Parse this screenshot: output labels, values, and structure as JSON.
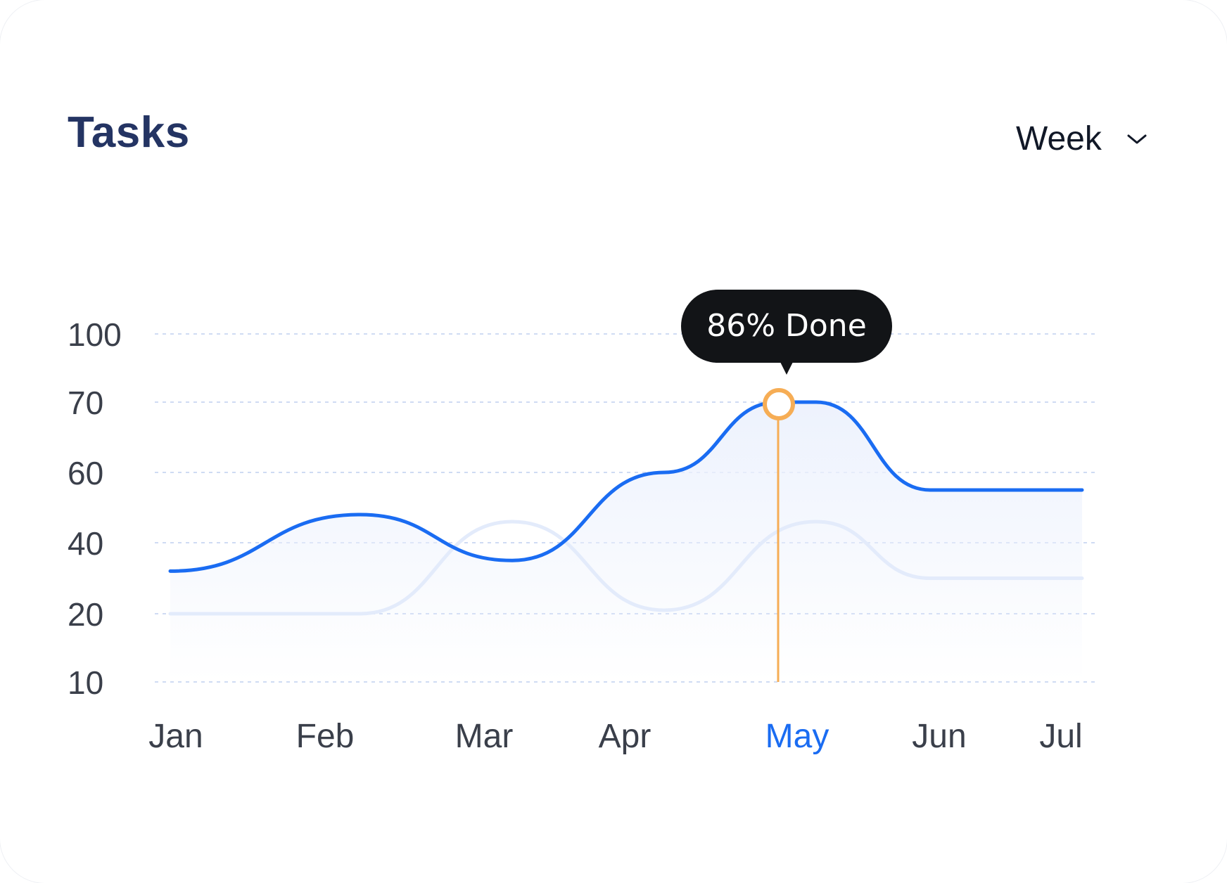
{
  "header": {
    "title": "Tasks",
    "period_selector": {
      "selected": "Week",
      "icon": "chevron-down-icon"
    }
  },
  "tooltip": {
    "label": "86% Done"
  },
  "colors": {
    "title": "#243463",
    "primary_series": "#1a6cf2",
    "secondary_series": "#e3ebfb",
    "area_fill": "#edf2fd",
    "grid": "#cfdbf3",
    "highlight": "#f6ad55",
    "tooltip_bg": "#121417",
    "axis_label": "#3a3f4a",
    "active_label": "#1a6cf2"
  },
  "chart_data": {
    "type": "area",
    "categories": [
      "Jan",
      "Feb",
      "Mar",
      "Apr",
      "May",
      "Jun",
      "Jul"
    ],
    "highlighted_category": "May",
    "y_ticks": [
      100,
      70,
      60,
      40,
      20,
      10
    ],
    "grid": true,
    "series": [
      {
        "role": "primary",
        "points": [
          {
            "x": 0.0,
            "y": 32
          },
          {
            "x": 1.25,
            "y": 48
          },
          {
            "x": 2.25,
            "y": 35
          },
          {
            "x": 3.25,
            "y": 60
          },
          {
            "x": 4.0,
            "y": 70
          },
          {
            "x": 4.25,
            "y": 70
          },
          {
            "x": 5.0,
            "y": 55
          },
          {
            "x": 6.0,
            "y": 55
          }
        ]
      },
      {
        "role": "secondary",
        "points": [
          {
            "x": 0.0,
            "y": 20
          },
          {
            "x": 1.25,
            "y": 20
          },
          {
            "x": 2.25,
            "y": 46
          },
          {
            "x": 3.25,
            "y": 21
          },
          {
            "x": 4.25,
            "y": 46
          },
          {
            "x": 5.0,
            "y": 30
          },
          {
            "x": 6.0,
            "y": 30
          }
        ]
      }
    ],
    "highlight_point": {
      "x": 4.0,
      "y": 70
    }
  }
}
